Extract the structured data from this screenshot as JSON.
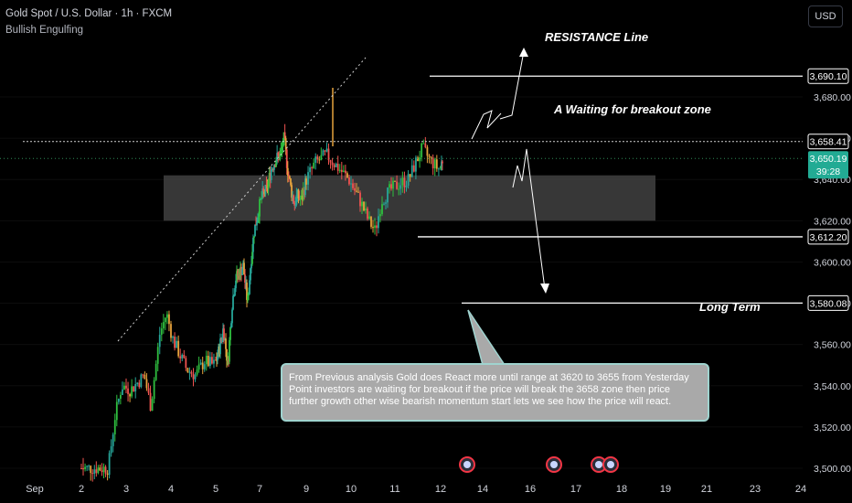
{
  "header": {
    "symbol": "Gold Spot / U.S. Dollar · 1h · FXCM",
    "indicator": "Bullish Engulfing",
    "currency_button": "USD"
  },
  "annotations": {
    "resistance": "RESISTANCE Line",
    "breakout": "A Waiting for breakout zone",
    "long_term": "Long Term",
    "note": "From Previous analysis Gold does React more until range at 3620 to 3655 from Yesterday Point investors are waiting for breakout if the price will break the 3658 zone then price further growth other wise bearish momentum start lets we see how the price will react."
  },
  "price_tags": {
    "resistance": "3,690.10",
    "breakout": "3,658.41",
    "current": "3,650.19",
    "countdown": "39:28",
    "support": "3,612.20",
    "long_term": "3,580.08"
  },
  "colors": {
    "bull": "#26a69a",
    "bull_bright": "#2fbf3f",
    "bear": "#ef5350",
    "bear_alt": "#e6a23c",
    "current_price_tag": "#22ab94",
    "zone": "#4a4a4a"
  },
  "chart_data": {
    "type": "candlestick",
    "title": "Gold Spot / U.S. Dollar · 1h · FXCM",
    "y_ticks": [
      3500,
      3520,
      3540,
      3560,
      3580,
      3600,
      3620,
      3640,
      3660,
      3680
    ],
    "y_tick_labels": [
      "3,500.00",
      "3,520.00",
      "3,540.00",
      "3,560.00",
      "3,580.00",
      "3,600.00",
      "3,620.00",
      "3,640.00",
      "3,660.00",
      "3,680.00"
    ],
    "ylim": [
      3495,
      3705
    ],
    "x_tick_labels": [
      "Sep",
      "2",
      "3",
      "4",
      "5",
      "7",
      "9",
      "10",
      "11",
      "12",
      "14",
      "16",
      "17",
      "18",
      "19",
      "21",
      "23",
      "24"
    ],
    "x_tick_days": [
      1,
      2,
      3,
      4,
      5,
      7,
      9,
      10,
      11,
      12,
      14,
      16,
      17,
      18,
      19,
      21,
      23,
      24
    ],
    "price_path": [
      [
        2.0,
        3500
      ],
      [
        2.6,
        3500
      ],
      [
        2.75,
        3525
      ],
      [
        2.9,
        3540
      ],
      [
        3.1,
        3538
      ],
      [
        3.4,
        3545
      ],
      [
        3.55,
        3530
      ],
      [
        3.75,
        3565
      ],
      [
        3.9,
        3575
      ],
      [
        4.05,
        3562
      ],
      [
        4.2,
        3555
      ],
      [
        4.35,
        3548
      ],
      [
        4.55,
        3545
      ],
      [
        4.75,
        3552
      ],
      [
        4.95,
        3550
      ],
      [
        5.1,
        3555
      ],
      [
        5.35,
        3568
      ],
      [
        5.55,
        3550
      ],
      [
        5.75,
        3580
      ],
      [
        5.9,
        3592
      ],
      [
        6.1,
        3595
      ],
      [
        6.25,
        3598
      ],
      [
        6.45,
        3580
      ],
      [
        6.6,
        3600
      ],
      [
        6.75,
        3615
      ],
      [
        6.95,
        3625
      ],
      [
        7.1,
        3632
      ],
      [
        7.3,
        3635
      ],
      [
        7.5,
        3645
      ],
      [
        7.7,
        3650
      ],
      [
        7.9,
        3652
      ],
      [
        8.05,
        3660
      ],
      [
        8.2,
        3645
      ],
      [
        8.35,
        3635
      ],
      [
        8.5,
        3628
      ],
      [
        8.6,
        3632
      ],
      [
        8.8,
        3630
      ],
      [
        9.0,
        3640
      ],
      [
        9.2,
        3648
      ],
      [
        9.45,
        3652
      ],
      [
        9.7,
        3646
      ],
      [
        9.95,
        3640
      ],
      [
        10.2,
        3630
      ],
      [
        10.4,
        3620
      ],
      [
        10.55,
        3615
      ],
      [
        10.7,
        3630
      ],
      [
        10.9,
        3635
      ],
      [
        11.1,
        3638
      ],
      [
        11.3,
        3640
      ],
      [
        11.45,
        3648
      ],
      [
        11.6,
        3655
      ],
      [
        11.75,
        3650
      ],
      [
        11.95,
        3645
      ],
      [
        12.1,
        3650
      ]
    ],
    "levels": {
      "resistance": 3690.1,
      "breakout": 3658.41,
      "current": 3650.19,
      "support": 3612.2,
      "long_term": 3580.08
    },
    "zone": [
      3620,
      3642
    ]
  }
}
